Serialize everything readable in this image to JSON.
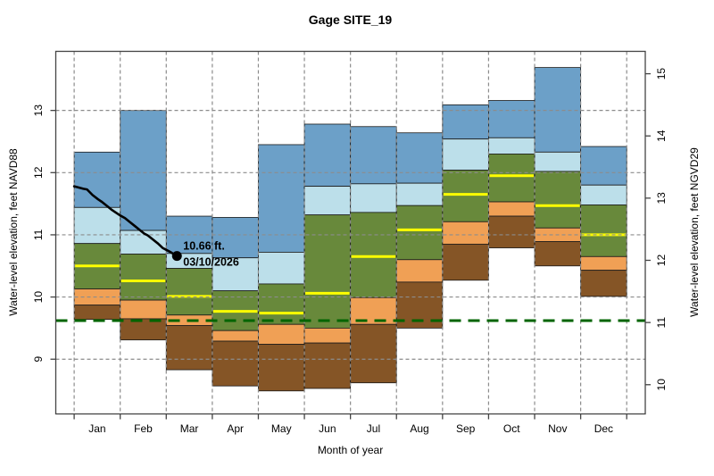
{
  "figure": {
    "title": "Gage SITE_19",
    "xlabel": "Month of year",
    "ylabel_left": "Water-level elevation, feet NAVD88",
    "ylabel_right": "Water-level elevation, feet NGVD29"
  },
  "annotation": {
    "value_label": "10.66 ft.",
    "date_label": "03/10/2026",
    "x_month_units": 2.232,
    "y_value": 10.66
  },
  "chart_data": {
    "type": "area",
    "subtype": "monthly-percentile-step-bands",
    "title": "Gage SITE_19",
    "xlabel": "Month of year",
    "categories": [
      "Jan",
      "Feb",
      "Mar",
      "Apr",
      "May",
      "Jun",
      "Jul",
      "Aug",
      "Sep",
      "Oct",
      "Nov",
      "Dec"
    ],
    "grid": true,
    "y_axis_left": {
      "label": "Water-level elevation, feet NAVD88",
      "ticks": [
        9,
        10,
        11,
        12,
        13
      ],
      "range": [
        8.12,
        13.95
      ]
    },
    "y_axis_right": {
      "label": "Water-level elevation, feet NGVD29",
      "ticks": [
        10,
        11,
        12,
        13,
        14,
        15
      ],
      "offset_from_left": 1.41
    },
    "series": [
      {
        "name": "max",
        "values": [
          12.33,
          13.0,
          11.3,
          11.28,
          12.45,
          12.78,
          12.74,
          12.64,
          13.09,
          13.16,
          13.69,
          12.42
        ]
      },
      {
        "name": "p90",
        "values": [
          11.44,
          11.07,
          10.7,
          10.63,
          10.72,
          11.78,
          11.82,
          11.83,
          12.54,
          12.56,
          12.33,
          11.8
        ]
      },
      {
        "name": "p75",
        "values": [
          10.86,
          10.69,
          10.46,
          10.1,
          10.21,
          11.32,
          11.36,
          11.47,
          12.04,
          12.3,
          12.02,
          11.48
        ]
      },
      {
        "name": "median",
        "values": [
          10.5,
          10.26,
          10.01,
          9.77,
          9.74,
          10.06,
          10.65,
          11.08,
          11.65,
          11.95,
          11.47,
          11.0
        ]
      },
      {
        "name": "p25",
        "values": [
          10.13,
          9.95,
          9.71,
          9.46,
          9.56,
          9.5,
          9.99,
          10.6,
          11.21,
          11.53,
          11.11,
          10.65
        ]
      },
      {
        "name": "p10",
        "values": [
          9.87,
          9.65,
          9.54,
          9.29,
          9.24,
          9.26,
          9.56,
          10.24,
          10.85,
          11.3,
          10.89,
          10.43
        ]
      },
      {
        "name": "min",
        "values": [
          9.64,
          9.31,
          8.83,
          8.57,
          8.49,
          8.53,
          8.62,
          9.5,
          10.27,
          10.79,
          10.5,
          10.01
        ]
      }
    ],
    "bands": [
      {
        "name": "band-p90-max",
        "upper": "max",
        "lower": "p90",
        "color": "#6ca0c8"
      },
      {
        "name": "band-p75-p90",
        "upper": "p90",
        "lower": "p75",
        "color": "#bcdfea"
      },
      {
        "name": "band-p25-p75",
        "upper": "p75",
        "lower": "p25",
        "color": "#68893b"
      },
      {
        "name": "band-p10-p25",
        "upper": "p25",
        "lower": "p10",
        "color": "#f0a055"
      },
      {
        "name": "band-min-p10",
        "upper": "p10",
        "lower": "min",
        "color": "#855526"
      }
    ],
    "median_color": "#ffff00",
    "reference_line": {
      "value": 9.62,
      "color": "#006400",
      "style": "dashed"
    },
    "observed_line": {
      "name": "observed water level",
      "color": "#000000",
      "end_label_value": "10.66 ft.",
      "end_label_date": "03/10/2026",
      "points_month_units_and_feet": [
        [
          0.0,
          11.78
        ],
        [
          0.1,
          11.76
        ],
        [
          0.2,
          11.74
        ],
        [
          0.28,
          11.73
        ],
        [
          0.4,
          11.64
        ],
        [
          0.52,
          11.57
        ],
        [
          0.6,
          11.53
        ],
        [
          0.72,
          11.46
        ],
        [
          0.82,
          11.4
        ],
        [
          0.92,
          11.35
        ],
        [
          1.0,
          11.31
        ],
        [
          1.1,
          11.27
        ],
        [
          1.2,
          11.21
        ],
        [
          1.32,
          11.14
        ],
        [
          1.42,
          11.08
        ],
        [
          1.52,
          11.02
        ],
        [
          1.6,
          10.99
        ],
        [
          1.7,
          10.93
        ],
        [
          1.82,
          10.86
        ],
        [
          1.92,
          10.79
        ],
        [
          2.02,
          10.75
        ],
        [
          2.1,
          10.72
        ],
        [
          2.18,
          10.68
        ],
        [
          2.232,
          10.66
        ]
      ]
    }
  },
  "colors": {
    "band_blue": "#6ca0c8",
    "band_light_blue": "#bcdfea",
    "band_green": "#68893b",
    "band_orange": "#f0a055",
    "band_brown": "#855526",
    "median_yellow": "#ffff00",
    "reference_green": "#006400",
    "grid_gray": "#8c8c8c",
    "axis_black": "#333333"
  }
}
